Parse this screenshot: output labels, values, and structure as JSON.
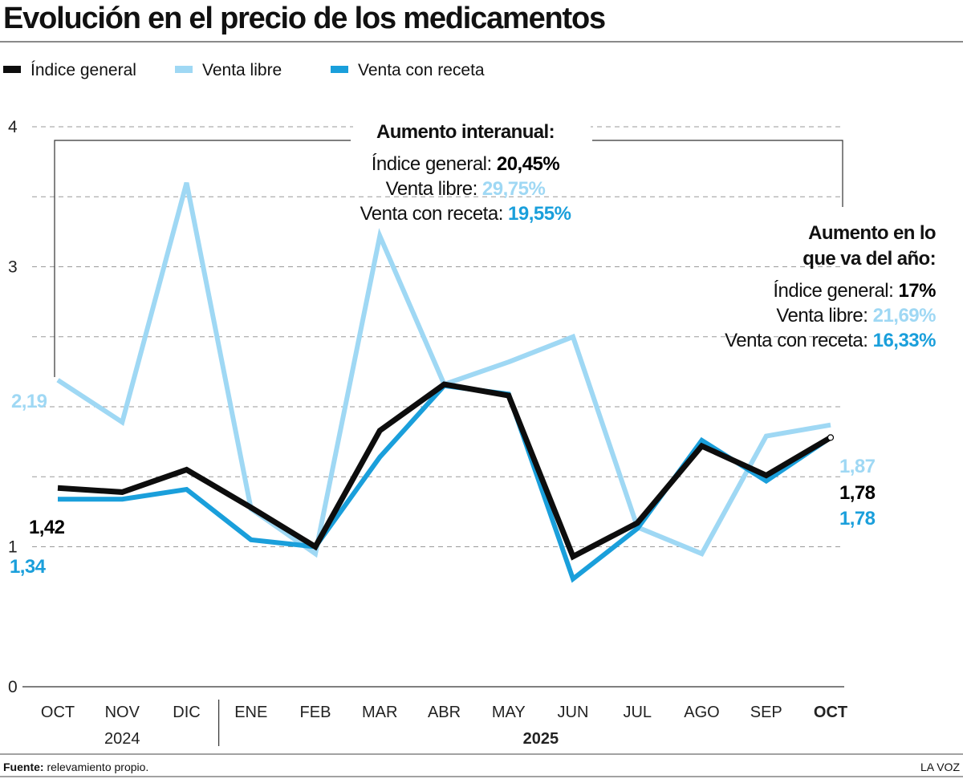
{
  "title": "Evolución en el precio de los medicamentos",
  "colors": {
    "general": "#0d0d0d",
    "libre": "#9fd8f4",
    "receta": "#1a9fdb",
    "grid": "#9a9a9a"
  },
  "chart_data": {
    "type": "line",
    "categories": [
      "OCT",
      "NOV",
      "DIC",
      "ENE",
      "FEB",
      "MAR",
      "ABR",
      "MAY",
      "JUN",
      "JUL",
      "AGO",
      "SEP",
      "OCT"
    ],
    "years": [
      {
        "label": "2024",
        "from": 0,
        "to": 2
      },
      {
        "label": "2025",
        "from": 3,
        "to": 12
      }
    ],
    "series": [
      {
        "key": "libre",
        "name": "Venta libre",
        "values": [
          2.19,
          1.89,
          3.6,
          1.27,
          0.95,
          3.22,
          2.16,
          2.32,
          2.5,
          1.14,
          0.95,
          1.79,
          1.87
        ]
      },
      {
        "key": "receta",
        "name": "Venta con receta",
        "values": [
          1.34,
          1.34,
          1.41,
          1.05,
          1.0,
          1.64,
          2.15,
          2.09,
          0.77,
          1.13,
          1.76,
          1.47,
          1.78
        ]
      },
      {
        "key": "general",
        "name": "Índice general",
        "values": [
          1.42,
          1.39,
          1.55,
          1.28,
          1.0,
          1.83,
          2.16,
          2.08,
          0.93,
          1.17,
          1.72,
          1.51,
          1.78
        ]
      }
    ],
    "ylim": [
      0,
      4
    ],
    "yticks": [
      0,
      1,
      3,
      4
    ],
    "grid": true,
    "legend": "top-left",
    "start_labels": {
      "libre": "2,19",
      "general": "1,42",
      "receta": "1,34"
    },
    "end_labels": {
      "libre": "1,87",
      "general": "1,78",
      "receta": "1,78"
    }
  },
  "legend": [
    {
      "key": "general",
      "label": "Índice general"
    },
    {
      "key": "libre",
      "label": "Venta libre"
    },
    {
      "key": "receta",
      "label": "Venta con receta"
    }
  ],
  "annotation_interanual": {
    "heading": "Aumento interanual:",
    "lines": [
      {
        "key": "general",
        "label": "Índice general: ",
        "value": "20,45%"
      },
      {
        "key": "libre",
        "label": "Venta libre: ",
        "value": "29,75%"
      },
      {
        "key": "receta",
        "label": "Venta con receta: ",
        "value": "19,55%"
      }
    ]
  },
  "annotation_anual": {
    "heading_1": "Aumento en lo",
    "heading_2": "que va del año:",
    "lines": [
      {
        "key": "general",
        "label": "Índice general: ",
        "value": "17%"
      },
      {
        "key": "libre",
        "label": "Venta libre: ",
        "value": "21,69%"
      },
      {
        "key": "receta",
        "label": "Venta con receta: ",
        "value": "16,33%"
      }
    ]
  },
  "footer": {
    "source_label": "Fuente:",
    "source_text": " relevamiento propio.",
    "brand": "LA VOZ"
  }
}
